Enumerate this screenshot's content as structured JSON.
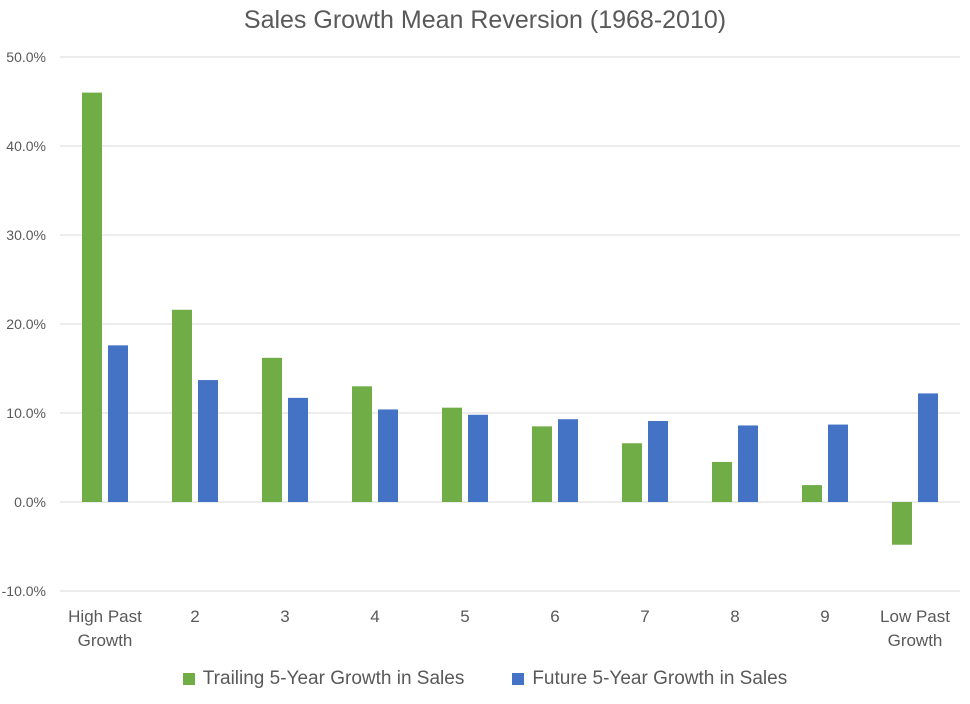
{
  "chart_data": {
    "type": "bar",
    "title": "Sales Growth Mean Reversion (1968-2010)",
    "xlabel": "",
    "ylabel": "",
    "ylim": [
      -10,
      50
    ],
    "yticks": [
      "50.0%",
      "40.0%",
      "30.0%",
      "20.0%",
      "10.0%",
      "0.0%",
      "-10.0%"
    ],
    "ytick_values": [
      50,
      40,
      30,
      20,
      10,
      0,
      -10
    ],
    "categories": [
      [
        "High Past",
        "Growth"
      ],
      [
        "2"
      ],
      [
        "3"
      ],
      [
        "4"
      ],
      [
        "5"
      ],
      [
        "6"
      ],
      [
        "7"
      ],
      [
        "8"
      ],
      [
        "9"
      ],
      [
        "Low Past",
        "Growth"
      ]
    ],
    "series": [
      {
        "name": "Trailing 5-Year Growth in Sales",
        "color": "#70AD47",
        "values": [
          46.0,
          21.6,
          16.2,
          13.0,
          10.6,
          8.5,
          6.6,
          4.5,
          1.9,
          -4.8
        ]
      },
      {
        "name": "Future 5-Year Growth in Sales",
        "color": "#4472C4",
        "values": [
          17.6,
          13.7,
          11.7,
          10.4,
          9.8,
          9.3,
          9.1,
          8.6,
          8.7,
          12.2
        ]
      }
    ],
    "grid": true,
    "legend_position": "bottom"
  }
}
